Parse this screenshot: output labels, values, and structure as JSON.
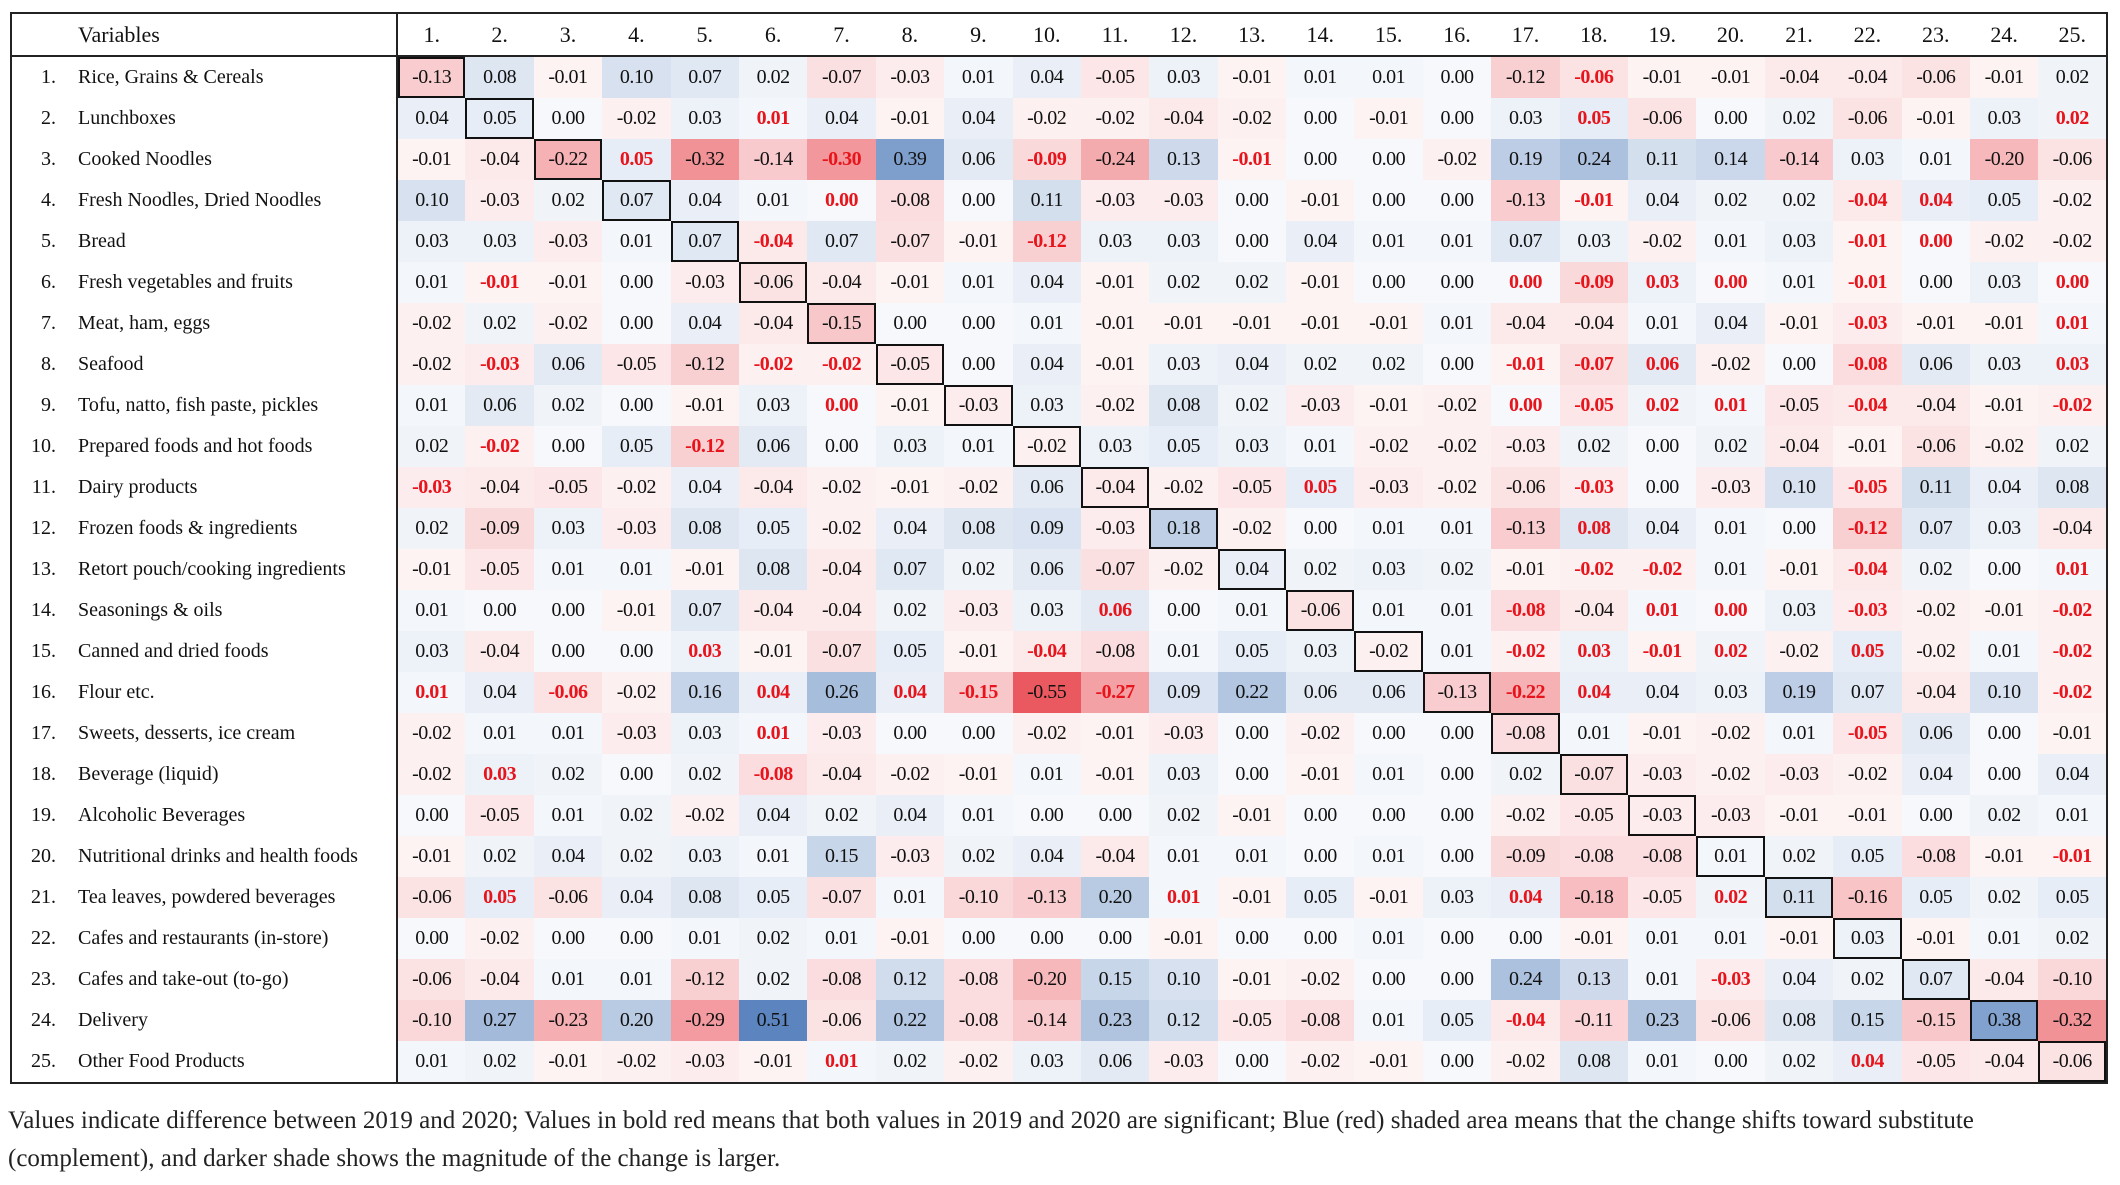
{
  "header": {
    "variables_label": "Variables"
  },
  "columns": [
    "1.",
    "2.",
    "3.",
    "4.",
    "5.",
    "6.",
    "7.",
    "8.",
    "9.",
    "10.",
    "11.",
    "12.",
    "13.",
    "14.",
    "15.",
    "16.",
    "17.",
    "18.",
    "19.",
    "20.",
    "21.",
    "22.",
    "23.",
    "24.",
    "25."
  ],
  "colors": {
    "significant_text": "#e8141c",
    "substitute_shade": "#4a78b8",
    "complement_shade": "#e8474f"
  },
  "rows": [
    {
      "num": "1.",
      "label": "Rice, Grains & Cereals",
      "values": [
        "-0.13",
        "0.08",
        "-0.01",
        "0.10",
        "0.07",
        "0.02",
        "-0.07",
        "-0.03",
        "0.01",
        "0.04",
        "-0.05",
        "0.03",
        "-0.01",
        "0.01",
        "0.01",
        "0.00",
        "-0.12",
        "-0.06",
        "-0.01",
        "-0.01",
        "-0.04",
        "-0.04",
        "-0.06",
        "-0.01",
        "0.02"
      ],
      "sig": [
        18
      ]
    },
    {
      "num": "2.",
      "label": "Lunchboxes",
      "values": [
        "0.04",
        "0.05",
        "0.00",
        "-0.02",
        "0.03",
        "0.01",
        "0.04",
        "-0.01",
        "0.04",
        "-0.02",
        "-0.02",
        "-0.04",
        "-0.02",
        "0.00",
        "-0.01",
        "0.00",
        "0.03",
        "0.05",
        "-0.06",
        "0.00",
        "0.02",
        "-0.06",
        "-0.01",
        "0.03",
        "0.02"
      ],
      "sig": [
        6,
        18,
        25
      ]
    },
    {
      "num": "3.",
      "label": "Cooked Noodles",
      "values": [
        "-0.01",
        "-0.04",
        "-0.22",
        "0.05",
        "-0.32",
        "-0.14",
        "-0.30",
        "0.39",
        "0.06",
        "-0.09",
        "-0.24",
        "0.13",
        "-0.01",
        "0.00",
        "0.00",
        "-0.02",
        "0.19",
        "0.24",
        "0.11",
        "0.14",
        "-0.14",
        "0.03",
        "0.01",
        "-0.20",
        "-0.06"
      ],
      "sig": [
        4,
        7,
        10,
        13
      ]
    },
    {
      "num": "4.",
      "label": "Fresh Noodles, Dried Noodles",
      "values": [
        "0.10",
        "-0.03",
        "0.02",
        "0.07",
        "0.04",
        "0.01",
        "0.00",
        "-0.08",
        "0.00",
        "0.11",
        "-0.03",
        "-0.03",
        "0.00",
        "-0.01",
        "0.00",
        "0.00",
        "-0.13",
        "-0.01",
        "0.04",
        "0.02",
        "0.02",
        "-0.04",
        "0.04",
        "0.05",
        "-0.02"
      ],
      "sig": [
        7,
        18,
        22,
        23
      ]
    },
    {
      "num": "5.",
      "label": "Bread",
      "values": [
        "0.03",
        "0.03",
        "-0.03",
        "0.01",
        "0.07",
        "-0.04",
        "0.07",
        "-0.07",
        "-0.01",
        "-0.12",
        "0.03",
        "0.03",
        "0.00",
        "0.04",
        "0.01",
        "0.01",
        "0.07",
        "0.03",
        "-0.02",
        "0.01",
        "0.03",
        "-0.01",
        "0.00",
        "-0.02",
        "-0.02"
      ],
      "sig": [
        6,
        10,
        22,
        23
      ]
    },
    {
      "num": "6.",
      "label": "Fresh vegetables and fruits",
      "values": [
        "0.01",
        "-0.01",
        "-0.01",
        "0.00",
        "-0.03",
        "-0.06",
        "-0.04",
        "-0.01",
        "0.01",
        "0.04",
        "-0.01",
        "0.02",
        "0.02",
        "-0.01",
        "0.00",
        "0.00",
        "0.00",
        "-0.09",
        "0.03",
        "0.00",
        "0.01",
        "-0.01",
        "0.00",
        "0.03",
        "0.00"
      ],
      "sig": [
        2,
        17,
        18,
        19,
        20,
        22,
        25
      ]
    },
    {
      "num": "7.",
      "label": "Meat, ham, eggs",
      "values": [
        "-0.02",
        "0.02",
        "-0.02",
        "0.00",
        "0.04",
        "-0.04",
        "-0.15",
        "0.00",
        "0.00",
        "0.01",
        "-0.01",
        "-0.01",
        "-0.01",
        "-0.01",
        "-0.01",
        "0.01",
        "-0.04",
        "-0.04",
        "0.01",
        "0.04",
        "-0.01",
        "-0.03",
        "-0.01",
        "-0.01",
        "0.01"
      ],
      "sig": [
        22,
        25
      ]
    },
    {
      "num": "8.",
      "label": "Seafood",
      "values": [
        "-0.02",
        "-0.03",
        "0.06",
        "-0.05",
        "-0.12",
        "-0.02",
        "-0.02",
        "-0.05",
        "0.00",
        "0.04",
        "-0.01",
        "0.03",
        "0.04",
        "0.02",
        "0.02",
        "0.00",
        "-0.01",
        "-0.07",
        "0.06",
        "-0.02",
        "0.00",
        "-0.08",
        "0.06",
        "0.03",
        "0.03"
      ],
      "sig": [
        2,
        6,
        7,
        17,
        18,
        19,
        22,
        25
      ]
    },
    {
      "num": "9.",
      "label": "Tofu, natto, fish paste, pickles",
      "values": [
        "0.01",
        "0.06",
        "0.02",
        "0.00",
        "-0.01",
        "0.03",
        "0.00",
        "-0.01",
        "-0.03",
        "0.03",
        "-0.02",
        "0.08",
        "0.02",
        "-0.03",
        "-0.01",
        "-0.02",
        "0.00",
        "-0.05",
        "0.02",
        "0.01",
        "-0.05",
        "-0.04",
        "-0.04",
        "-0.01",
        "-0.02"
      ],
      "sig": [
        7,
        17,
        18,
        19,
        20,
        22,
        25
      ]
    },
    {
      "num": "10.",
      "label": "Prepared foods and hot foods",
      "values": [
        "0.02",
        "-0.02",
        "0.00",
        "0.05",
        "-0.12",
        "0.06",
        "0.00",
        "0.03",
        "0.01",
        "-0.02",
        "0.03",
        "0.05",
        "0.03",
        "0.01",
        "-0.02",
        "-0.02",
        "-0.03",
        "0.02",
        "0.00",
        "0.02",
        "-0.04",
        "-0.01",
        "-0.06",
        "-0.02",
        "0.02"
      ],
      "sig": [
        2,
        5
      ]
    },
    {
      "num": "11.",
      "label": "Dairy products",
      "values": [
        "-0.03",
        "-0.04",
        "-0.05",
        "-0.02",
        "0.04",
        "-0.04",
        "-0.02",
        "-0.01",
        "-0.02",
        "0.06",
        "-0.04",
        "-0.02",
        "-0.05",
        "0.05",
        "-0.03",
        "-0.02",
        "-0.06",
        "-0.03",
        "0.00",
        "-0.03",
        "0.10",
        "-0.05",
        "0.11",
        "0.04",
        "0.08"
      ],
      "sig": [
        1,
        14,
        18,
        22
      ]
    },
    {
      "num": "12.",
      "label": "Frozen foods & ingredients",
      "values": [
        "0.02",
        "-0.09",
        "0.03",
        "-0.03",
        "0.08",
        "0.05",
        "-0.02",
        "0.04",
        "0.08",
        "0.09",
        "-0.03",
        "0.18",
        "-0.02",
        "0.00",
        "0.01",
        "0.01",
        "-0.13",
        "0.08",
        "0.04",
        "0.01",
        "0.00",
        "-0.12",
        "0.07",
        "0.03",
        "-0.04"
      ],
      "sig": [
        18,
        22
      ]
    },
    {
      "num": "13.",
      "label": "Retort pouch/cooking ingredients",
      "values": [
        "-0.01",
        "-0.05",
        "0.01",
        "0.01",
        "-0.01",
        "0.08",
        "-0.04",
        "0.07",
        "0.02",
        "0.06",
        "-0.07",
        "-0.02",
        "0.04",
        "0.02",
        "0.03",
        "0.02",
        "-0.01",
        "-0.02",
        "-0.02",
        "0.01",
        "-0.01",
        "-0.04",
        "0.02",
        "0.00",
        "0.01"
      ],
      "sig": [
        18,
        19,
        22,
        25
      ]
    },
    {
      "num": "14.",
      "label": "Seasonings & oils",
      "values": [
        "0.01",
        "0.00",
        "0.00",
        "-0.01",
        "0.07",
        "-0.04",
        "-0.04",
        "0.02",
        "-0.03",
        "0.03",
        "0.06",
        "0.00",
        "0.01",
        "-0.06",
        "0.01",
        "0.01",
        "-0.08",
        "-0.04",
        "0.01",
        "0.00",
        "0.03",
        "-0.03",
        "-0.02",
        "-0.01",
        "-0.02"
      ],
      "sig": [
        11,
        17,
        19,
        20,
        22,
        25
      ]
    },
    {
      "num": "15.",
      "label": "Canned and dried foods",
      "values": [
        "0.03",
        "-0.04",
        "0.00",
        "0.00",
        "0.03",
        "-0.01",
        "-0.07",
        "0.05",
        "-0.01",
        "-0.04",
        "-0.08",
        "0.01",
        "0.05",
        "0.03",
        "-0.02",
        "0.01",
        "-0.02",
        "0.03",
        "-0.01",
        "0.02",
        "-0.02",
        "0.05",
        "-0.02",
        "0.01",
        "-0.02"
      ],
      "sig": [
        5,
        10,
        17,
        18,
        19,
        20,
        22,
        25
      ]
    },
    {
      "num": "16.",
      "label": "Flour etc.",
      "values": [
        "0.01",
        "0.04",
        "-0.06",
        "-0.02",
        "0.16",
        "0.04",
        "0.26",
        "0.04",
        "-0.15",
        "-0.55",
        "-0.27",
        "0.09",
        "0.22",
        "0.06",
        "0.06",
        "-0.13",
        "-0.22",
        "0.04",
        "0.04",
        "0.03",
        "0.19",
        "0.07",
        "-0.04",
        "0.10",
        "-0.02"
      ],
      "sig": [
        1,
        3,
        6,
        8,
        9,
        11,
        17,
        18,
        25
      ]
    },
    {
      "num": "17.",
      "label": "Sweets, desserts, ice cream",
      "values": [
        "-0.02",
        "0.01",
        "0.01",
        "-0.03",
        "0.03",
        "0.01",
        "-0.03",
        "0.00",
        "0.00",
        "-0.02",
        "-0.01",
        "-0.03",
        "0.00",
        "-0.02",
        "0.00",
        "0.00",
        "-0.08",
        "0.01",
        "-0.01",
        "-0.02",
        "0.01",
        "-0.05",
        "0.06",
        "0.00",
        "-0.01"
      ],
      "sig": [
        6,
        22
      ]
    },
    {
      "num": "18.",
      "label": "Beverage (liquid)",
      "values": [
        "-0.02",
        "0.03",
        "0.02",
        "0.00",
        "0.02",
        "-0.08",
        "-0.04",
        "-0.02",
        "-0.01",
        "0.01",
        "-0.01",
        "0.03",
        "0.00",
        "-0.01",
        "0.01",
        "0.00",
        "0.02",
        "-0.07",
        "-0.03",
        "-0.02",
        "-0.03",
        "-0.02",
        "0.04",
        "0.00",
        "0.04"
      ],
      "sig": [
        2,
        6
      ]
    },
    {
      "num": "19.",
      "label": "Alcoholic Beverages",
      "values": [
        "0.00",
        "-0.05",
        "0.01",
        "0.02",
        "-0.02",
        "0.04",
        "0.02",
        "0.04",
        "0.01",
        "0.00",
        "0.00",
        "0.02",
        "-0.01",
        "0.00",
        "0.00",
        "0.00",
        "-0.02",
        "-0.05",
        "-0.03",
        "-0.03",
        "-0.01",
        "-0.01",
        "0.00",
        "0.02",
        "0.01"
      ],
      "sig": []
    },
    {
      "num": "20.",
      "label": "Nutritional drinks and health foods",
      "values": [
        "-0.01",
        "0.02",
        "0.04",
        "0.02",
        "0.03",
        "0.01",
        "0.15",
        "-0.03",
        "0.02",
        "0.04",
        "-0.04",
        "0.01",
        "0.01",
        "0.00",
        "0.01",
        "0.00",
        "-0.09",
        "-0.08",
        "-0.08",
        "0.01",
        "0.02",
        "0.05",
        "-0.08",
        "-0.01",
        "-0.01"
      ],
      "sig": [
        25
      ]
    },
    {
      "num": "21.",
      "label": "Tea leaves, powdered beverages",
      "values": [
        "-0.06",
        "0.05",
        "-0.06",
        "0.04",
        "0.08",
        "0.05",
        "-0.07",
        "0.01",
        "-0.10",
        "-0.13",
        "0.20",
        "0.01",
        "-0.01",
        "0.05",
        "-0.01",
        "0.03",
        "0.04",
        "-0.18",
        "-0.05",
        "0.02",
        "0.11",
        "-0.16",
        "0.05",
        "0.02",
        "0.05"
      ],
      "sig": [
        2,
        12,
        17,
        20
      ]
    },
    {
      "num": "22.",
      "label": "Cafes and restaurants (in-store)",
      "values": [
        "0.00",
        "-0.02",
        "0.00",
        "0.00",
        "0.01",
        "0.02",
        "0.01",
        "-0.01",
        "0.00",
        "0.00",
        "0.00",
        "-0.01",
        "0.00",
        "0.00",
        "0.01",
        "0.00",
        "0.00",
        "-0.01",
        "0.01",
        "0.01",
        "-0.01",
        "0.03",
        "-0.01",
        "0.01",
        "0.02"
      ],
      "sig": []
    },
    {
      "num": "23.",
      "label": "Cafes and take-out (to-go)",
      "values": [
        "-0.06",
        "-0.04",
        "0.01",
        "0.01",
        "-0.12",
        "0.02",
        "-0.08",
        "0.12",
        "-0.08",
        "-0.20",
        "0.15",
        "0.10",
        "-0.01",
        "-0.02",
        "0.00",
        "0.00",
        "0.24",
        "0.13",
        "0.01",
        "-0.03",
        "0.04",
        "0.02",
        "0.07",
        "-0.04",
        "-0.10"
      ],
      "sig": [
        20
      ]
    },
    {
      "num": "24.",
      "label": "Delivery",
      "values": [
        "-0.10",
        "0.27",
        "-0.23",
        "0.20",
        "-0.29",
        "0.51",
        "-0.06",
        "0.22",
        "-0.08",
        "-0.14",
        "0.23",
        "0.12",
        "-0.05",
        "-0.08",
        "0.01",
        "0.05",
        "-0.04",
        "-0.11",
        "0.23",
        "-0.06",
        "0.08",
        "0.15",
        "-0.15",
        "0.38",
        "-0.32"
      ],
      "sig": [
        17
      ]
    },
    {
      "num": "25.",
      "label": "Other Food Products",
      "values": [
        "0.01",
        "0.02",
        "-0.01",
        "-0.02",
        "-0.03",
        "-0.01",
        "0.01",
        "0.02",
        "-0.02",
        "0.03",
        "0.06",
        "-0.03",
        "0.00",
        "-0.02",
        "-0.01",
        "0.00",
        "-0.02",
        "0.08",
        "0.01",
        "0.00",
        "0.02",
        "0.04",
        "-0.05",
        "-0.04",
        "-0.06"
      ],
      "sig": [
        7,
        22
      ]
    }
  ],
  "caption": "Values indicate difference between 2019 and 2020; Values in bold red means that both values in 2019 and 2020 are significant; Blue (red) shaded area means that the change shifts toward substitute (complement), and darker shade shows the magnitude of the change is larger."
}
